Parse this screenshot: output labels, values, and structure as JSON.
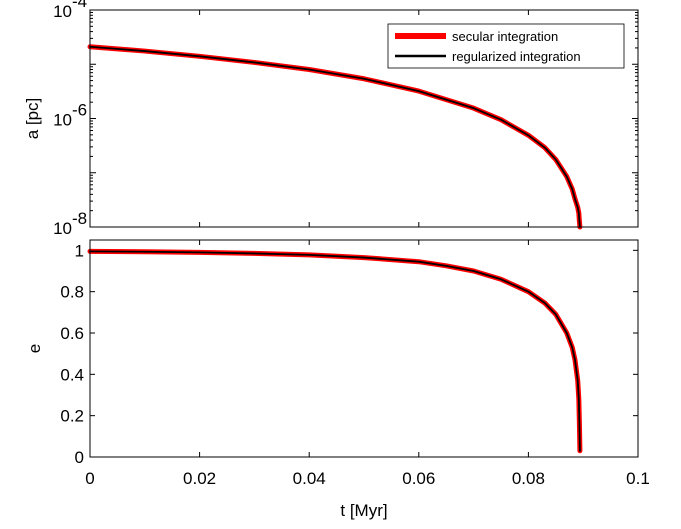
{
  "chart_data": [
    {
      "type": "line",
      "panel": "top",
      "xlabel": "",
      "ylabel": "a [pc]",
      "yscale": "log",
      "ylim": [
        1e-08,
        0.0001
      ],
      "xlim": [
        0,
        0.1
      ],
      "yticks": [
        {
          "base": "10",
          "exp": "-8",
          "value": 1e-08
        },
        {
          "base": "10",
          "exp": "-6",
          "value": 1e-06
        },
        {
          "base": "10",
          "exp": "-4",
          "value": 0.0001
        }
      ],
      "legend": {
        "placement": "top-right",
        "entries": [
          "secular integration",
          "regularized integration"
        ]
      },
      "series": [
        {
          "name": "secular integration",
          "color": "#ff0000",
          "x": [
            0,
            0.01,
            0.02,
            0.03,
            0.04,
            0.05,
            0.06,
            0.07,
            0.075,
            0.08,
            0.083,
            0.085,
            0.087,
            0.088,
            0.0885,
            0.089,
            0.0892,
            0.0893,
            0.0894
          ],
          "y": [
            2.1e-05,
            1.75e-05,
            1.4e-05,
            1.08e-05,
            8e-06,
            5.4e-06,
            3.2e-06,
            1.55e-06,
            9.5e-07,
            4.9e-07,
            2.9e-07,
            1.75e-07,
            8.5e-08,
            5e-08,
            3.3e-08,
            2.3e-08,
            1.8e-08,
            1.3e-08,
            1e-08
          ]
        },
        {
          "name": "regularized integration",
          "color": "#000000",
          "x": [
            0,
            0.01,
            0.02,
            0.03,
            0.04,
            0.05,
            0.06,
            0.07,
            0.075,
            0.08,
            0.083,
            0.085,
            0.087,
            0.088,
            0.0885,
            0.089,
            0.0892,
            0.0893,
            0.0894
          ],
          "y": [
            2.1e-05,
            1.75e-05,
            1.4e-05,
            1.08e-05,
            8e-06,
            5.4e-06,
            3.2e-06,
            1.55e-06,
            9.5e-07,
            4.9e-07,
            2.9e-07,
            1.75e-07,
            8.5e-08,
            5e-08,
            3.3e-08,
            2.3e-08,
            1.8e-08,
            1.3e-08,
            1e-08
          ]
        }
      ]
    },
    {
      "type": "line",
      "panel": "bottom",
      "xlabel": "t [Myr]",
      "ylabel": "e",
      "yscale": "linear",
      "ylim": [
        0,
        1.05
      ],
      "xlim": [
        0,
        0.1
      ],
      "yticks": [
        "0",
        "0.2",
        "0.4",
        "0.6",
        "0.8",
        "1"
      ],
      "xticks": [
        "0",
        "0.02",
        "0.04",
        "0.06",
        "0.08",
        "0.1"
      ],
      "series": [
        {
          "name": "secular integration",
          "color": "#ff0000",
          "x": [
            0,
            0.01,
            0.02,
            0.03,
            0.04,
            0.05,
            0.06,
            0.065,
            0.07,
            0.075,
            0.08,
            0.083,
            0.085,
            0.087,
            0.088,
            0.0885,
            0.089,
            0.0892,
            0.0893,
            0.0894
          ],
          "y": [
            0.995,
            0.993,
            0.99,
            0.985,
            0.978,
            0.965,
            0.945,
            0.925,
            0.9,
            0.86,
            0.8,
            0.745,
            0.69,
            0.6,
            0.53,
            0.47,
            0.37,
            0.28,
            0.17,
            0.03
          ]
        },
        {
          "name": "regularized integration",
          "color": "#000000",
          "x": [
            0,
            0.01,
            0.02,
            0.03,
            0.04,
            0.05,
            0.06,
            0.065,
            0.07,
            0.075,
            0.08,
            0.083,
            0.085,
            0.087,
            0.088,
            0.0885,
            0.089,
            0.0892,
            0.0893,
            0.0894
          ],
          "y": [
            0.995,
            0.993,
            0.99,
            0.985,
            0.978,
            0.965,
            0.945,
            0.925,
            0.9,
            0.86,
            0.8,
            0.745,
            0.69,
            0.6,
            0.53,
            0.47,
            0.37,
            0.28,
            0.17,
            0.03
          ]
        }
      ]
    }
  ]
}
